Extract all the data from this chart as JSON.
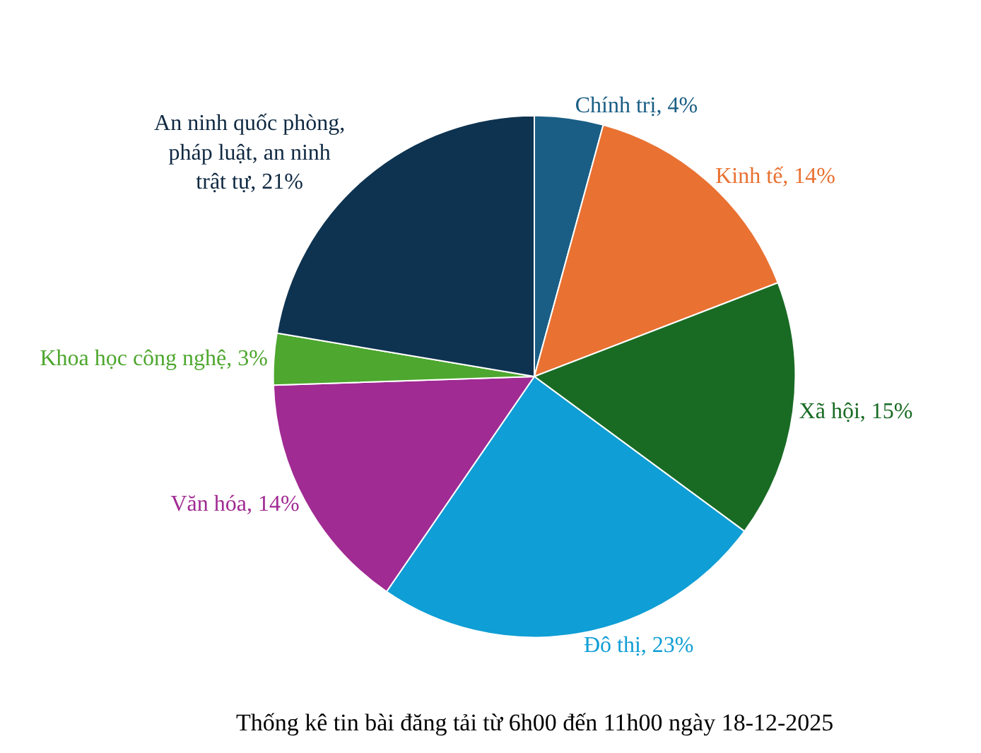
{
  "chart_data": {
    "type": "pie",
    "title": "Thống kê tin bài đăng tải từ 6h00 đến 11h00 ngày 18-12-2025",
    "categories": [
      "Chính trị",
      "Kinh tế",
      "Xã hội",
      "Đô thị",
      "Văn hóa",
      "Khoa học công nghệ",
      "An ninh quốc phòng, pháp luật, an ninh trật tự"
    ],
    "values": [
      4,
      14,
      15,
      23,
      14,
      3,
      21
    ],
    "value_labels": [
      "4%",
      "14%",
      "15%",
      "23%",
      "14%",
      "3%",
      "21%"
    ],
    "colors": [
      "#1a5e85",
      "#e97132",
      "#196b24",
      "#0f9ed5",
      "#a02b93",
      "#4ea72e",
      "#0e3350"
    ],
    "legend": false
  }
}
